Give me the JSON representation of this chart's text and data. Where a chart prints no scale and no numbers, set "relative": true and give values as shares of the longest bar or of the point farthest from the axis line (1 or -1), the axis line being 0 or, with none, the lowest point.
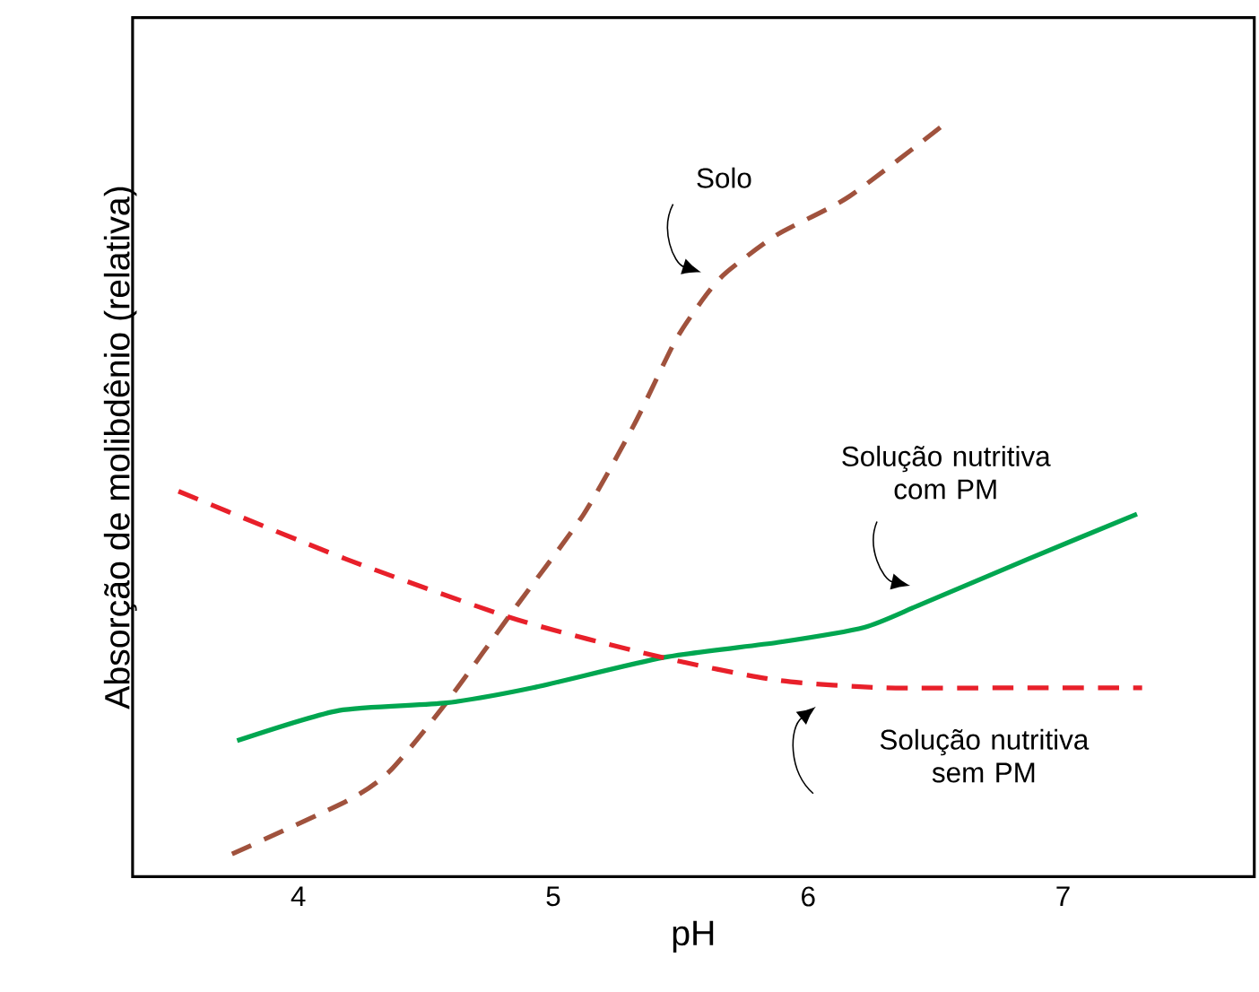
{
  "chart_data": {
    "type": "line",
    "relative": true,
    "xlabel": "pH",
    "ylabel": "Absorção de molibdênio (relativa)",
    "xlim": [
      3.35,
      7.75
    ],
    "xticks": [
      4,
      5,
      6,
      7
    ],
    "marker": "none",
    "series": [
      {
        "name": "Solo",
        "color": "#a0523d",
        "line_style": "dashed",
        "x": [
          3.74,
          4.19,
          4.36,
          4.58,
          4.86,
          5.12,
          5.32,
          5.48,
          5.6,
          5.68,
          5.88,
          6.16,
          6.55
        ],
        "values": [
          0.03,
          0.1,
          0.14,
          0.23,
          0.36,
          0.48,
          0.6,
          0.71,
          0.77,
          0.8,
          0.85,
          0.9,
          1.0
        ]
      },
      {
        "name": "Solução nutritiva com PM",
        "color": "#00a650",
        "line_style": "solid",
        "x": [
          3.76,
          4.16,
          4.58,
          4.92,
          5.43,
          5.88,
          6.22,
          6.44,
          6.86,
          7.29
        ],
        "values": [
          0.18,
          0.22,
          0.23,
          0.25,
          0.29,
          0.31,
          0.33,
          0.36,
          0.42,
          0.48
        ]
      },
      {
        "name": "Solução nutritiva sem PM",
        "color": "#e8202a",
        "line_style": "dashed",
        "x": [
          3.53,
          4.19,
          4.86,
          5.43,
          5.88,
          6.3,
          6.86,
          7.31
        ],
        "values": [
          0.51,
          0.42,
          0.34,
          0.29,
          0.26,
          0.25,
          0.25,
          0.25
        ]
      }
    ]
  }
}
